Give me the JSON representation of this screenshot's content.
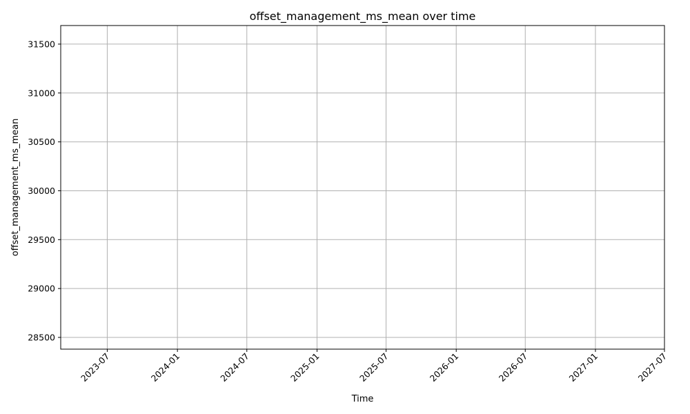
{
  "chart_data": {
    "type": "line",
    "title": "offset_management_ms_mean over time",
    "xlabel": "Time",
    "ylabel": "offset_management_ms_mean",
    "x_axis_type": "date",
    "xlim": [
      "2023-03-01",
      "2027-07-01"
    ],
    "ylim": [
      28380,
      31690
    ],
    "x_ticks": [
      "2023-07",
      "2024-01",
      "2024-07",
      "2025-01",
      "2025-07",
      "2026-01",
      "2026-07",
      "2027-01",
      "2027-07"
    ],
    "y_ticks": [
      "28500",
      "29000",
      "29500",
      "30000",
      "30500",
      "31000",
      "31500"
    ],
    "grid": true,
    "series": [
      {
        "color": "#1f77b4",
        "x": [],
        "y": []
      }
    ],
    "colors": {
      "grid": "#b0b0b0",
      "axes": "#000000",
      "background": "#ffffff"
    }
  }
}
